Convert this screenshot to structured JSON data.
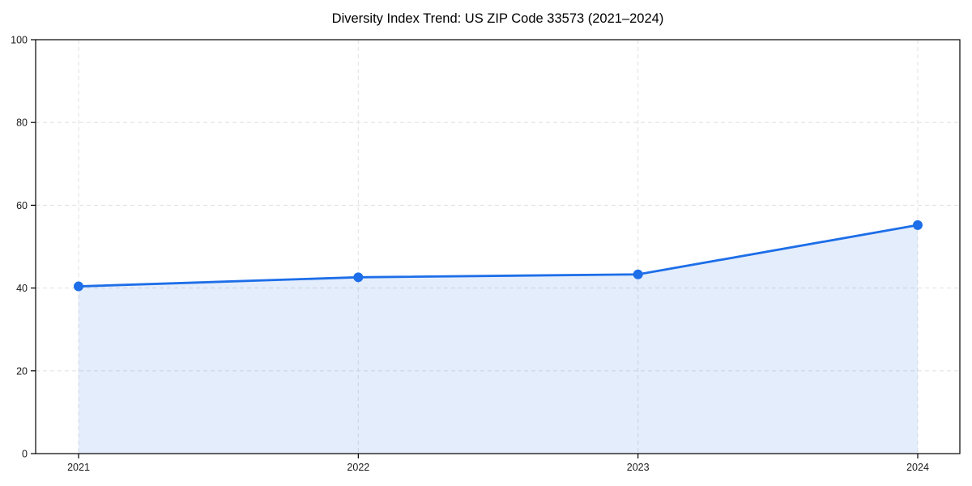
{
  "chart_data": {
    "type": "area",
    "title": "Diversity Index Trend: US ZIP Code 33573 (2021–2024)",
    "categories": [
      "2021",
      "2022",
      "2023",
      "2024"
    ],
    "values": [
      40.4,
      42.6,
      43.3,
      55.2
    ],
    "xlabel": "",
    "ylabel": "",
    "y_ticks": [
      0,
      20,
      40,
      60,
      80,
      100
    ],
    "ylim": [
      0,
      100
    ],
    "grid": true,
    "grid_style": "dashed",
    "legend": "none",
    "marker": "circle",
    "colors": {
      "line": "#1d6ee8",
      "marker": "#1d6ee8",
      "fill": "#1d6ee8",
      "fill_opacity": 0.12,
      "grid": "#e3e3e3",
      "axis": "#000000",
      "tick_text": "#1a1a1a",
      "background": "#ffffff"
    }
  }
}
